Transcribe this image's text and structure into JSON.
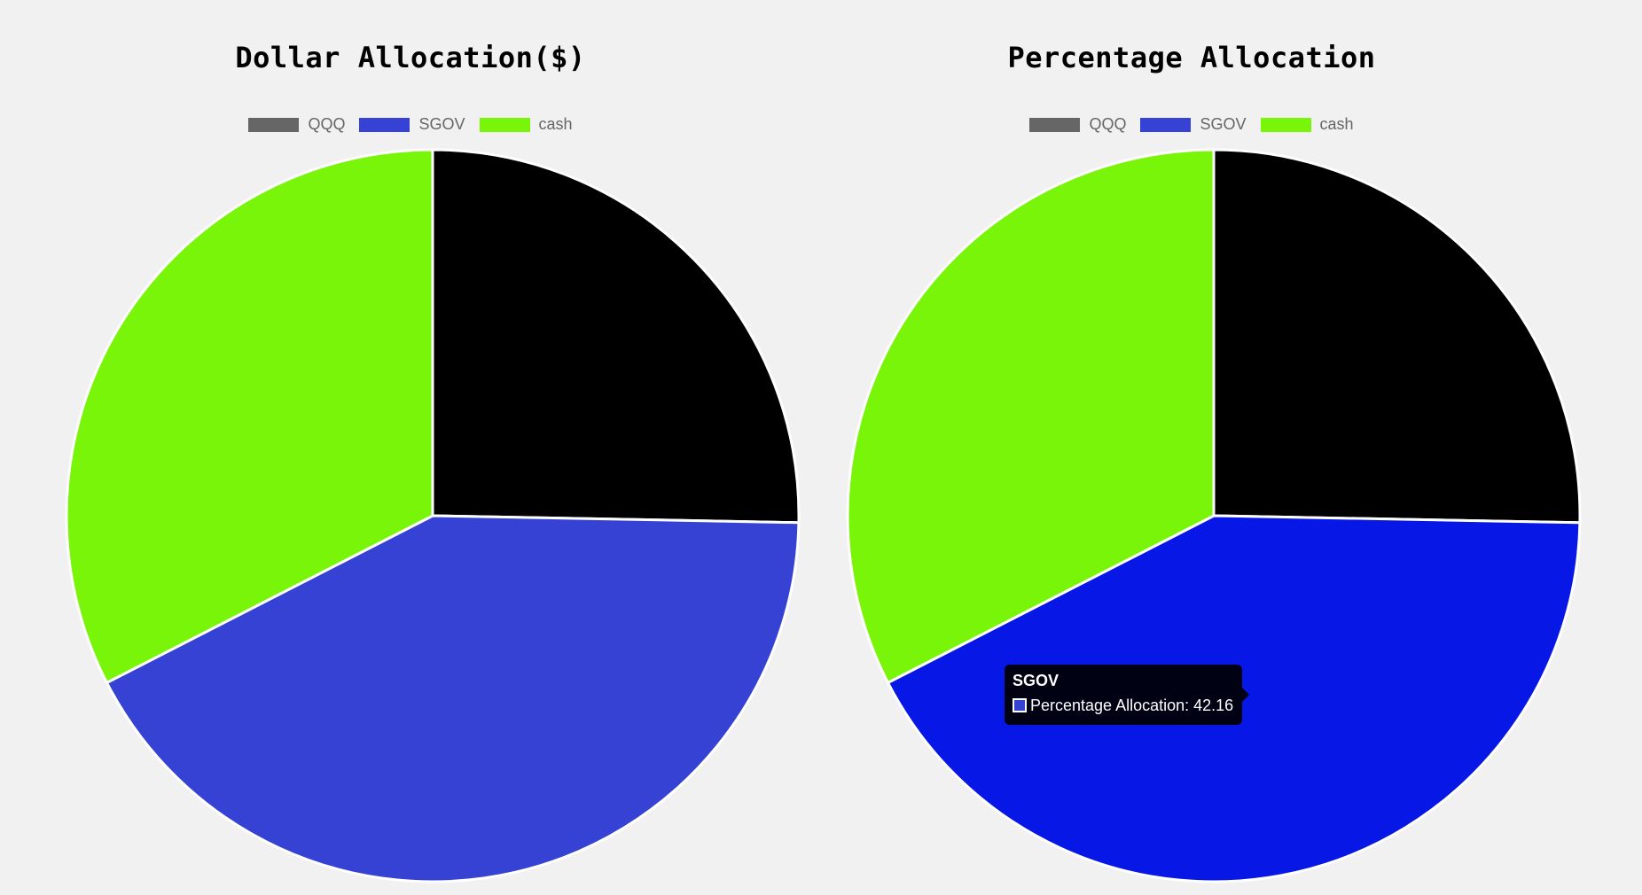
{
  "chart_data": [
    {
      "type": "pie",
      "title": "Dollar Allocation($)",
      "categories": [
        "QQQ",
        "SGOV",
        "cash"
      ],
      "values": [
        25.3,
        42.16,
        32.54
      ],
      "colors": [
        "#000000",
        "#3642d4",
        "#78f508"
      ],
      "legend_colors": [
        "#666666",
        "#3642d4",
        "#78f508"
      ],
      "legend": "top"
    },
    {
      "type": "pie",
      "title": "Percentage Allocation",
      "categories": [
        "QQQ",
        "SGOV",
        "cash"
      ],
      "values": [
        25.3,
        42.16,
        32.54
      ],
      "colors": [
        "#000000",
        "#0718e6",
        "#78f508"
      ],
      "legend_colors": [
        "#666666",
        "#3642d4",
        "#78f508"
      ],
      "legend": "top",
      "tooltip": {
        "title": "SGOV",
        "label": "Percentage Allocation: 42.16",
        "color": "#3642d4"
      }
    }
  ]
}
